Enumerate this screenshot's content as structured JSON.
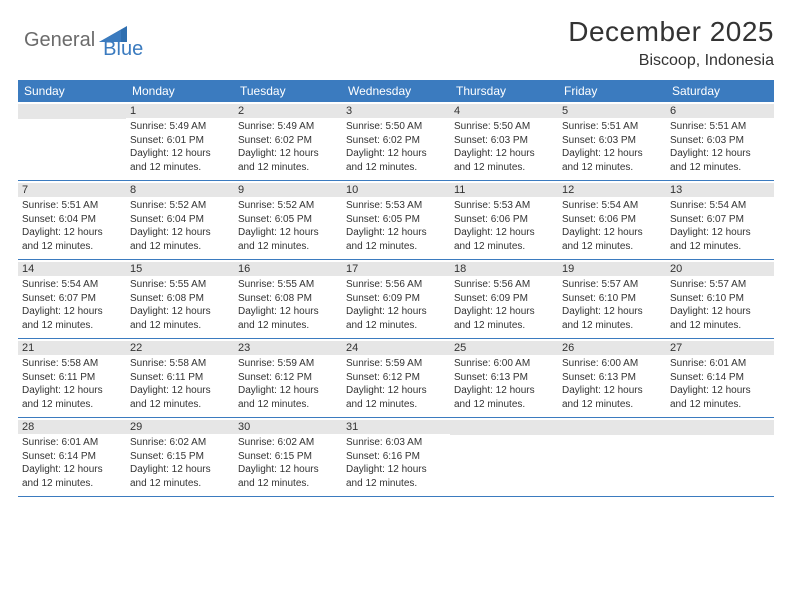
{
  "logo": {
    "textGeneral": "General",
    "textBlue": "Blue"
  },
  "title": "December 2025",
  "location": "Biscoop, Indonesia",
  "colors": {
    "headerBg": "#3b7bbf",
    "headerText": "#ffffff",
    "stripBg": "#e6e6e6",
    "border": "#3b7bbf",
    "text": "#333333"
  },
  "daysOfWeek": [
    "Sunday",
    "Monday",
    "Tuesday",
    "Wednesday",
    "Thursday",
    "Friday",
    "Saturday"
  ],
  "weeks": [
    [
      {
        "date": "",
        "sunrise": "",
        "sunset": "",
        "daylight": ""
      },
      {
        "date": "1",
        "sunrise": "Sunrise: 5:49 AM",
        "sunset": "Sunset: 6:01 PM",
        "daylight": "Daylight: 12 hours and 12 minutes."
      },
      {
        "date": "2",
        "sunrise": "Sunrise: 5:49 AM",
        "sunset": "Sunset: 6:02 PM",
        "daylight": "Daylight: 12 hours and 12 minutes."
      },
      {
        "date": "3",
        "sunrise": "Sunrise: 5:50 AM",
        "sunset": "Sunset: 6:02 PM",
        "daylight": "Daylight: 12 hours and 12 minutes."
      },
      {
        "date": "4",
        "sunrise": "Sunrise: 5:50 AM",
        "sunset": "Sunset: 6:03 PM",
        "daylight": "Daylight: 12 hours and 12 minutes."
      },
      {
        "date": "5",
        "sunrise": "Sunrise: 5:51 AM",
        "sunset": "Sunset: 6:03 PM",
        "daylight": "Daylight: 12 hours and 12 minutes."
      },
      {
        "date": "6",
        "sunrise": "Sunrise: 5:51 AM",
        "sunset": "Sunset: 6:03 PM",
        "daylight": "Daylight: 12 hours and 12 minutes."
      }
    ],
    [
      {
        "date": "7",
        "sunrise": "Sunrise: 5:51 AM",
        "sunset": "Sunset: 6:04 PM",
        "daylight": "Daylight: 12 hours and 12 minutes."
      },
      {
        "date": "8",
        "sunrise": "Sunrise: 5:52 AM",
        "sunset": "Sunset: 6:04 PM",
        "daylight": "Daylight: 12 hours and 12 minutes."
      },
      {
        "date": "9",
        "sunrise": "Sunrise: 5:52 AM",
        "sunset": "Sunset: 6:05 PM",
        "daylight": "Daylight: 12 hours and 12 minutes."
      },
      {
        "date": "10",
        "sunrise": "Sunrise: 5:53 AM",
        "sunset": "Sunset: 6:05 PM",
        "daylight": "Daylight: 12 hours and 12 minutes."
      },
      {
        "date": "11",
        "sunrise": "Sunrise: 5:53 AM",
        "sunset": "Sunset: 6:06 PM",
        "daylight": "Daylight: 12 hours and 12 minutes."
      },
      {
        "date": "12",
        "sunrise": "Sunrise: 5:54 AM",
        "sunset": "Sunset: 6:06 PM",
        "daylight": "Daylight: 12 hours and 12 minutes."
      },
      {
        "date": "13",
        "sunrise": "Sunrise: 5:54 AM",
        "sunset": "Sunset: 6:07 PM",
        "daylight": "Daylight: 12 hours and 12 minutes."
      }
    ],
    [
      {
        "date": "14",
        "sunrise": "Sunrise: 5:54 AM",
        "sunset": "Sunset: 6:07 PM",
        "daylight": "Daylight: 12 hours and 12 minutes."
      },
      {
        "date": "15",
        "sunrise": "Sunrise: 5:55 AM",
        "sunset": "Sunset: 6:08 PM",
        "daylight": "Daylight: 12 hours and 12 minutes."
      },
      {
        "date": "16",
        "sunrise": "Sunrise: 5:55 AM",
        "sunset": "Sunset: 6:08 PM",
        "daylight": "Daylight: 12 hours and 12 minutes."
      },
      {
        "date": "17",
        "sunrise": "Sunrise: 5:56 AM",
        "sunset": "Sunset: 6:09 PM",
        "daylight": "Daylight: 12 hours and 12 minutes."
      },
      {
        "date": "18",
        "sunrise": "Sunrise: 5:56 AM",
        "sunset": "Sunset: 6:09 PM",
        "daylight": "Daylight: 12 hours and 12 minutes."
      },
      {
        "date": "19",
        "sunrise": "Sunrise: 5:57 AM",
        "sunset": "Sunset: 6:10 PM",
        "daylight": "Daylight: 12 hours and 12 minutes."
      },
      {
        "date": "20",
        "sunrise": "Sunrise: 5:57 AM",
        "sunset": "Sunset: 6:10 PM",
        "daylight": "Daylight: 12 hours and 12 minutes."
      }
    ],
    [
      {
        "date": "21",
        "sunrise": "Sunrise: 5:58 AM",
        "sunset": "Sunset: 6:11 PM",
        "daylight": "Daylight: 12 hours and 12 minutes."
      },
      {
        "date": "22",
        "sunrise": "Sunrise: 5:58 AM",
        "sunset": "Sunset: 6:11 PM",
        "daylight": "Daylight: 12 hours and 12 minutes."
      },
      {
        "date": "23",
        "sunrise": "Sunrise: 5:59 AM",
        "sunset": "Sunset: 6:12 PM",
        "daylight": "Daylight: 12 hours and 12 minutes."
      },
      {
        "date": "24",
        "sunrise": "Sunrise: 5:59 AM",
        "sunset": "Sunset: 6:12 PM",
        "daylight": "Daylight: 12 hours and 12 minutes."
      },
      {
        "date": "25",
        "sunrise": "Sunrise: 6:00 AM",
        "sunset": "Sunset: 6:13 PM",
        "daylight": "Daylight: 12 hours and 12 minutes."
      },
      {
        "date": "26",
        "sunrise": "Sunrise: 6:00 AM",
        "sunset": "Sunset: 6:13 PM",
        "daylight": "Daylight: 12 hours and 12 minutes."
      },
      {
        "date": "27",
        "sunrise": "Sunrise: 6:01 AM",
        "sunset": "Sunset: 6:14 PM",
        "daylight": "Daylight: 12 hours and 12 minutes."
      }
    ],
    [
      {
        "date": "28",
        "sunrise": "Sunrise: 6:01 AM",
        "sunset": "Sunset: 6:14 PM",
        "daylight": "Daylight: 12 hours and 12 minutes."
      },
      {
        "date": "29",
        "sunrise": "Sunrise: 6:02 AM",
        "sunset": "Sunset: 6:15 PM",
        "daylight": "Daylight: 12 hours and 12 minutes."
      },
      {
        "date": "30",
        "sunrise": "Sunrise: 6:02 AM",
        "sunset": "Sunset: 6:15 PM",
        "daylight": "Daylight: 12 hours and 12 minutes."
      },
      {
        "date": "31",
        "sunrise": "Sunrise: 6:03 AM",
        "sunset": "Sunset: 6:16 PM",
        "daylight": "Daylight: 12 hours and 12 minutes."
      },
      {
        "date": "",
        "sunrise": "",
        "sunset": "",
        "daylight": ""
      },
      {
        "date": "",
        "sunrise": "",
        "sunset": "",
        "daylight": ""
      },
      {
        "date": "",
        "sunrise": "",
        "sunset": "",
        "daylight": ""
      }
    ]
  ]
}
